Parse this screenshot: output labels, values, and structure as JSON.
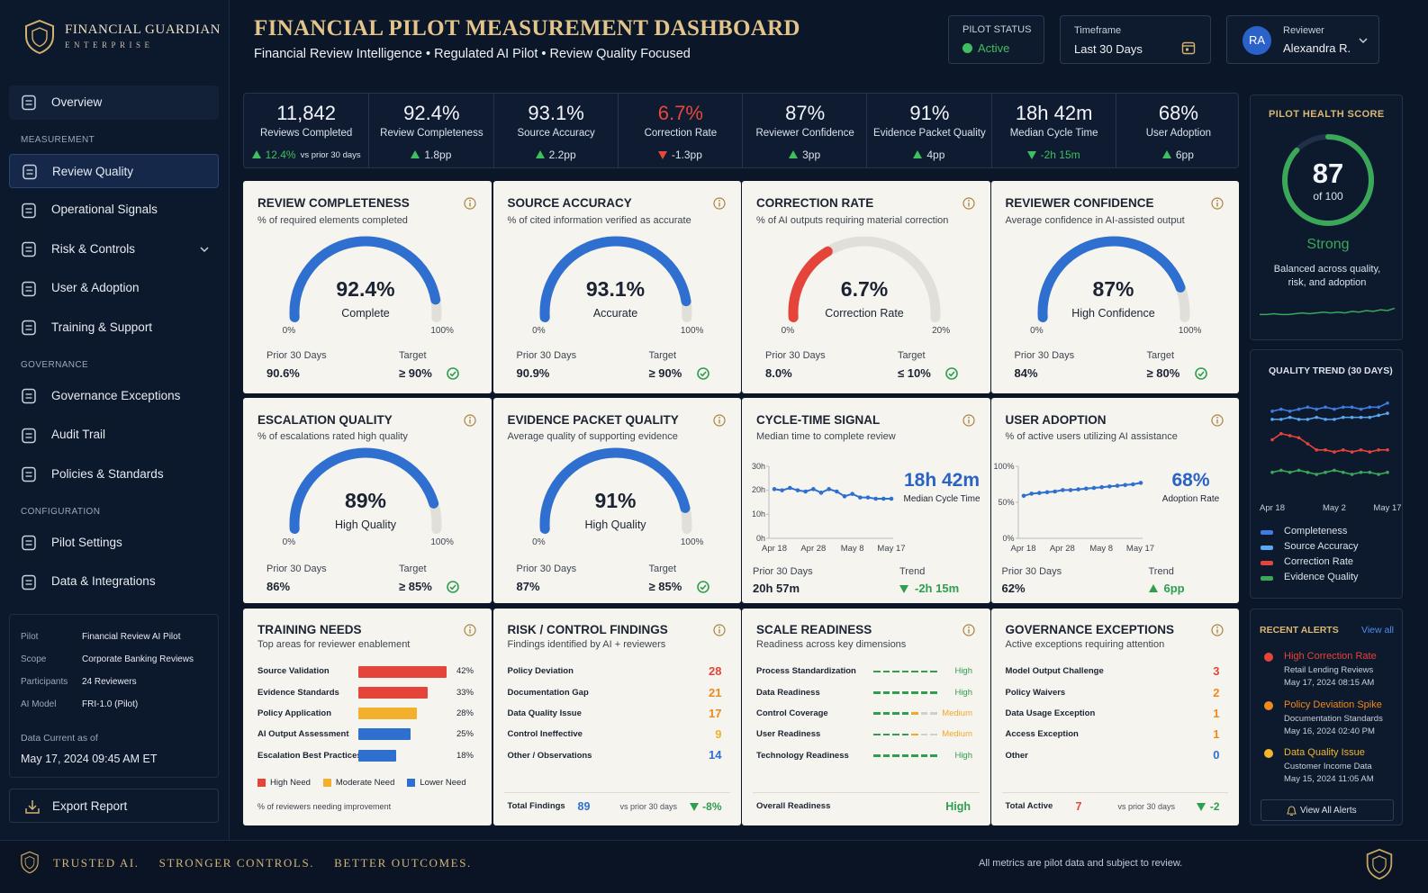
{
  "brand": {
    "name": "FINANCIAL GUARDIAN",
    "sub": "ENTERPRISE"
  },
  "header": {
    "title": "FINANCIAL PILOT MEASUREMENT DASHBOARD",
    "subtitle": "Financial Review Intelligence • Regulated AI Pilot • Review Quality Focused"
  },
  "status": {
    "label": "PILOT STATUS",
    "value": "Active",
    "color": "#3fbf5f"
  },
  "timeframe": {
    "label": "Timeframe",
    "value": "Last 30 Days"
  },
  "user": {
    "initials": "RA",
    "role": "Reviewer",
    "name": "Alexandra R."
  },
  "nav": [
    {
      "items": [
        {
          "label": "Overview"
        }
      ]
    },
    {
      "heading": "MEASUREMENT",
      "items": [
        {
          "label": "Review Quality",
          "active": true
        },
        {
          "label": "Operational Signals"
        },
        {
          "label": "Risk & Controls",
          "expandable": true
        },
        {
          "label": "User & Adoption"
        },
        {
          "label": "Training & Support"
        }
      ]
    },
    {
      "heading": "GOVERNANCE",
      "items": [
        {
          "label": "Governance Exceptions"
        },
        {
          "label": "Audit Trail"
        },
        {
          "label": "Policies & Standards"
        }
      ]
    },
    {
      "heading": "CONFIGURATION",
      "items": [
        {
          "label": "Pilot Settings"
        },
        {
          "label": "Data & Integrations"
        }
      ]
    }
  ],
  "pilot_info": {
    "rows": [
      [
        "Pilot",
        "Financial Review AI Pilot"
      ],
      [
        "Scope",
        "Corporate Banking Reviews"
      ],
      [
        "Participants",
        "24 Reviewers"
      ],
      [
        "AI Model",
        "FRI-1.0 (Pilot)"
      ]
    ],
    "as_of_label": "Data Current as of",
    "as_of": "May 17, 2024 09:45 AM ET"
  },
  "export": "Export Report",
  "kpis": [
    {
      "value": "11,842",
      "label": "Reviews Completed",
      "delta": "12.4%",
      "note": "vs prior 30 days",
      "arrow": "up",
      "color": "#3fbf5f",
      "text_color": "#3fbf5f"
    },
    {
      "value": "92.4%",
      "label": "Review Completeness",
      "delta": "1.8pp",
      "arrow": "up",
      "color": "#3fbf5f"
    },
    {
      "value": "93.1%",
      "label": "Source Accuracy",
      "delta": "2.2pp",
      "arrow": "up",
      "color": "#3fbf5f"
    },
    {
      "value": "6.7%",
      "value_color": "#e8473e",
      "label": "Correction Rate",
      "delta": "-1.3pp",
      "arrow": "down",
      "color": "#e8473e"
    },
    {
      "value": "87%",
      "label": "Reviewer Confidence",
      "delta": "3pp",
      "arrow": "up",
      "color": "#3fbf5f"
    },
    {
      "value": "91%",
      "label": "Evidence Packet Quality",
      "delta": "4pp",
      "arrow": "up",
      "color": "#3fbf5f"
    },
    {
      "value": "18h 42m",
      "label": "Median Cycle Time",
      "delta": "-2h 15m",
      "arrow": "down",
      "color": "#3fbf5f",
      "text_color": "#3fbf5f"
    },
    {
      "value": "68%",
      "label": "User Adoption",
      "delta": "6pp",
      "arrow": "up",
      "color": "#3fbf5f"
    }
  ],
  "cards": [
    {
      "kind": "gauge",
      "title": "REVIEW COMPLETENESS",
      "subtitle": "% of required elements completed",
      "gauge": {
        "value": 92.4,
        "label": "92.4%",
        "caption": "Complete",
        "range": [
          {
            "value": 0,
            "label": "0%"
          },
          {
            "value": 100,
            "label": "100%"
          }
        ],
        "color": "#2f6fd0"
      },
      "prior_label": "Prior 30 Days",
      "prior": "90.6%",
      "target_label": "Target",
      "target": "≥ 90%"
    },
    {
      "kind": "gauge",
      "title": "SOURCE ACCURACY",
      "subtitle": "% of cited information verified as accurate",
      "gauge": {
        "value": 93.1,
        "label": "93.1%",
        "caption": "Accurate",
        "range": [
          {
            "value": 0,
            "label": "0%"
          },
          {
            "value": 100,
            "label": "100%"
          }
        ],
        "color": "#2f6fd0"
      },
      "prior_label": "Prior 30 Days",
      "prior": "90.9%",
      "target_label": "Target",
      "target": "≥ 90%"
    },
    {
      "kind": "gauge",
      "title": "CORRECTION RATE",
      "subtitle": "% of AI outputs requiring material correction",
      "gauge": {
        "value": 6.7,
        "label": "6.7%",
        "caption": "Correction Rate",
        "range": [
          {
            "value": 0,
            "label": "0%"
          },
          {
            "value": 20,
            "label": "20%"
          }
        ],
        "color": "#e5443b"
      },
      "prior_label": "Prior 30 Days",
      "prior": "8.0%",
      "target_label": "Target",
      "target": "≤ 10%"
    },
    {
      "kind": "gauge",
      "title": "REVIEWER CONFIDENCE",
      "subtitle": "Average confidence in AI-assisted output",
      "gauge": {
        "value": 87,
        "label": "87%",
        "caption": "High Confidence",
        "range": [
          {
            "value": 0,
            "label": "0%"
          },
          {
            "value": 100,
            "label": "100%"
          }
        ],
        "color": "#2f6fd0"
      },
      "prior_label": "Prior 30 Days",
      "prior": "84%",
      "target_label": "Target",
      "target": "≥ 80%"
    },
    {
      "kind": "gauge",
      "title": "ESCALATION QUALITY",
      "subtitle": "% of escalations rated high quality",
      "gauge": {
        "value": 89,
        "label": "89%",
        "caption": "High Quality",
        "range": [
          {
            "value": 0,
            "label": "0%"
          },
          {
            "value": 100,
            "label": "100%"
          }
        ],
        "color": "#2f6fd0"
      },
      "prior_label": "Prior 30 Days",
      "prior": "86%",
      "target_label": "Target",
      "target": "≥ 85%"
    },
    {
      "kind": "gauge",
      "title": "EVIDENCE PACKET QUALITY",
      "subtitle": "Average quality of supporting evidence",
      "gauge": {
        "value": 91,
        "label": "91%",
        "caption": "High Quality",
        "range": [
          {
            "value": 0,
            "label": "0%"
          },
          {
            "value": 100,
            "label": "100%"
          }
        ],
        "color": "#2f6fd0"
      },
      "prior_label": "Prior 30 Days",
      "prior": "87%",
      "target_label": "Target",
      "target": "≥ 85%"
    },
    {
      "kind": "line",
      "title": "CYCLE-TIME SIGNAL",
      "subtitle": "Median time to complete review",
      "chart": {
        "type": "line",
        "categories": [
          "Apr 18",
          null,
          null,
          null,
          null,
          "Apr 28",
          null,
          null,
          null,
          null,
          "May 8",
          null,
          null,
          null,
          null,
          "May 17"
        ],
        "values": [
          20.5,
          20,
          21,
          20,
          19.5,
          20.5,
          19,
          20.5,
          19.5,
          17.5,
          18.5,
          17,
          17,
          16.5,
          16.5,
          16.5
        ],
        "ylim": [
          0,
          30
        ],
        "yticks": [
          {
            "value": 0,
            "label": "0h"
          },
          {
            "value": 10,
            "label": "10h"
          },
          {
            "value": 20,
            "label": "20h"
          },
          {
            "value": 30,
            "label": "30h"
          }
        ],
        "color": "#2f6fd0"
      },
      "headline": "18h 42m",
      "headline_caption": "Median Cycle Time",
      "prior_label": "Prior 30 Days",
      "prior": "20h 57m",
      "trend_label": "Trend",
      "trend": "-2h 15m",
      "trend_arrow": "down",
      "trend_color": "#2e9e4f"
    },
    {
      "kind": "line",
      "title": "USER ADOPTION",
      "subtitle": "% of active users utilizing AI assistance",
      "chart": {
        "type": "line",
        "categories": [
          "Apr 18",
          null,
          null,
          null,
          null,
          "Apr 28",
          null,
          null,
          null,
          null,
          "May 8",
          null,
          null,
          null,
          null,
          "May 17"
        ],
        "values": [
          59,
          62,
          63,
          64,
          65,
          67,
          67,
          68,
          69,
          70,
          71,
          72,
          73,
          74,
          75,
          77
        ],
        "ylim": [
          0,
          100
        ],
        "yticks": [
          {
            "value": 0,
            "label": "0%"
          },
          {
            "value": 50,
            "label": "50%"
          },
          {
            "value": 100,
            "label": "100%"
          }
        ],
        "color": "#2f6fd0"
      },
      "headline": "68%",
      "headline_caption": "Adoption Rate",
      "prior_label": "Prior 30 Days",
      "prior": "62%",
      "trend_label": "Trend",
      "trend": "6pp",
      "trend_arrow": "up",
      "trend_color": "#2e9e4f"
    },
    {
      "kind": "bars",
      "title": "TRAINING NEEDS",
      "subtitle": "Top areas for reviewer enablement",
      "xlim": [
        0,
        45
      ],
      "rows": [
        {
          "label": "Source Validation",
          "value": 42,
          "value_label": "42%",
          "color": "#e5443b"
        },
        {
          "label": "Evidence Standards",
          "value": 33,
          "value_label": "33%",
          "color": "#e5443b"
        },
        {
          "label": "Policy Application",
          "value": 28,
          "value_label": "28%",
          "color": "#f2b02c"
        },
        {
          "label": "AI Output Assessment",
          "value": 25,
          "value_label": "25%",
          "color": "#2f6fd0"
        },
        {
          "label": "Escalation Best Practices",
          "value": 18,
          "value_label": "18%",
          "color": "#2f6fd0"
        }
      ],
      "legend": [
        {
          "name": "High Need",
          "color": "#e5443b"
        },
        {
          "name": "Moderate Need",
          "color": "#f2b02c"
        },
        {
          "name": "Lower Need",
          "color": "#2f6fd0"
        }
      ],
      "note": "% of reviewers needing improvement"
    },
    {
      "kind": "list",
      "title": "RISK / CONTROL FINDINGS",
      "subtitle": "Findings identified by AI + reviewers",
      "rows": [
        {
          "label": "Policy Deviation",
          "value": 28,
          "color": "#e5443b"
        },
        {
          "label": "Documentation Gap",
          "value": 21,
          "color": "#ee8a1c"
        },
        {
          "label": "Data Quality Issue",
          "value": 17,
          "color": "#ee8a1c"
        },
        {
          "label": "Control Ineffective",
          "value": 9,
          "color": "#f2b02c"
        },
        {
          "label": "Other / Observations",
          "value": 14,
          "color": "#2f6fd0"
        }
      ],
      "total_label": "Total Findings",
      "total": 89,
      "total_color": "#2f6fd0",
      "compare": "vs prior 30 days",
      "change": "-8%",
      "change_arrow": "down",
      "change_color": "#2e9e4f"
    },
    {
      "kind": "levels",
      "title": "SCALE READINESS",
      "subtitle": "Readiness across key dimensions",
      "rows": [
        {
          "label": "Process Standardization",
          "level": "High",
          "color": "#2e9e4f"
        },
        {
          "label": "Data Readiness",
          "level": "High",
          "color": "#2e9e4f"
        },
        {
          "label": "Control Coverage",
          "level": "Medium",
          "color": "#f2a72c"
        },
        {
          "label": "User Readiness",
          "level": "Medium",
          "color": "#f2a72c"
        },
        {
          "label": "Technology Readiness",
          "level": "High",
          "color": "#2e9e4f"
        }
      ],
      "overall_label": "Overall Readiness",
      "overall": "High",
      "overall_color": "#2e9e4f"
    },
    {
      "kind": "list",
      "title": "GOVERNANCE EXCEPTIONS",
      "subtitle": "Active exceptions requiring attention",
      "rows": [
        {
          "label": "Model Output Challenge",
          "value": 3,
          "color": "#e5443b"
        },
        {
          "label": "Policy Waivers",
          "value": 2,
          "color": "#ee8a1c"
        },
        {
          "label": "Data Usage Exception",
          "value": 1,
          "color": "#ee8a1c"
        },
        {
          "label": "Access Exception",
          "value": 1,
          "color": "#ee8a1c"
        },
        {
          "label": "Other",
          "value": 0,
          "color": "#2f6fd0"
        }
      ],
      "total_label": "Total Active",
      "total": 7,
      "total_color": "#e5443b",
      "compare": "vs prior 30 days",
      "change": "-2",
      "change_arrow": "down",
      "change_color": "#2e9e4f"
    }
  ],
  "health": {
    "title": "PILOT HEALTH SCORE",
    "score": 87,
    "max_label": "of 100",
    "max": 100,
    "rating": "Strong",
    "description": "Balanced across quality, risk, and adoption",
    "color": "#3aa858",
    "sparkline": [
      50,
      50,
      51,
      50,
      50,
      51,
      52,
      51,
      52,
      53,
      52,
      53,
      52,
      54,
      53,
      55,
      54,
      56,
      55,
      58
    ],
    "sparkline_ylim": [
      40,
      70
    ]
  },
  "quality_trend": {
    "title": "QUALITY TREND (30 DAYS)",
    "categories": [
      "Apr 18",
      null,
      null,
      null,
      null,
      null,
      null,
      "May 2",
      null,
      null,
      null,
      null,
      null,
      "May 17"
    ],
    "ylim": [
      55,
      97
    ],
    "series": [
      {
        "name": "Completeness",
        "color": "#3f7be0",
        "values": [
          90,
          91,
          90,
          91,
          92,
          91,
          92,
          91,
          92,
          92,
          91,
          92,
          92,
          94
        ]
      },
      {
        "name": "Source Accuracy",
        "color": "#5aa8f2",
        "values": [
          86,
          86,
          87,
          86,
          86,
          87,
          86,
          86,
          87,
          87,
          87,
          87,
          88,
          89
        ]
      },
      {
        "name": "Correction Rate",
        "color": "#e5443b",
        "values": [
          76,
          79,
          78,
          77,
          74,
          71,
          71,
          70,
          71,
          70,
          71,
          70,
          71,
          71
        ]
      },
      {
        "name": "Evidence Quality",
        "color": "#3aa858",
        "values": [
          60,
          61,
          60,
          61,
          60,
          59,
          60,
          61,
          60,
          59,
          60,
          60,
          59,
          60
        ]
      }
    ]
  },
  "alerts": {
    "title": "RECENT ALERTS",
    "view_all": "View all",
    "button": "View All Alerts",
    "items": [
      {
        "title": "High Correction Rate",
        "source": "Retail Lending Reviews",
        "time": "May 17, 2024 08:15 AM",
        "color": "#e5443b"
      },
      {
        "title": "Policy Deviation Spike",
        "source": "Documentation Standards",
        "time": "May 16, 2024 02:40 PM",
        "color": "#ee8a1c"
      },
      {
        "title": "Data Quality Issue",
        "source": "Customer Income Data",
        "time": "May 15, 2024 11:05 AM",
        "color": "#f2b62c"
      }
    ]
  },
  "footer": {
    "tagline": [
      "TRUSTED AI.",
      "STRONGER CONTROLS.",
      "BETTER OUTCOMES."
    ],
    "note": "All metrics are pilot data and subject to review."
  }
}
